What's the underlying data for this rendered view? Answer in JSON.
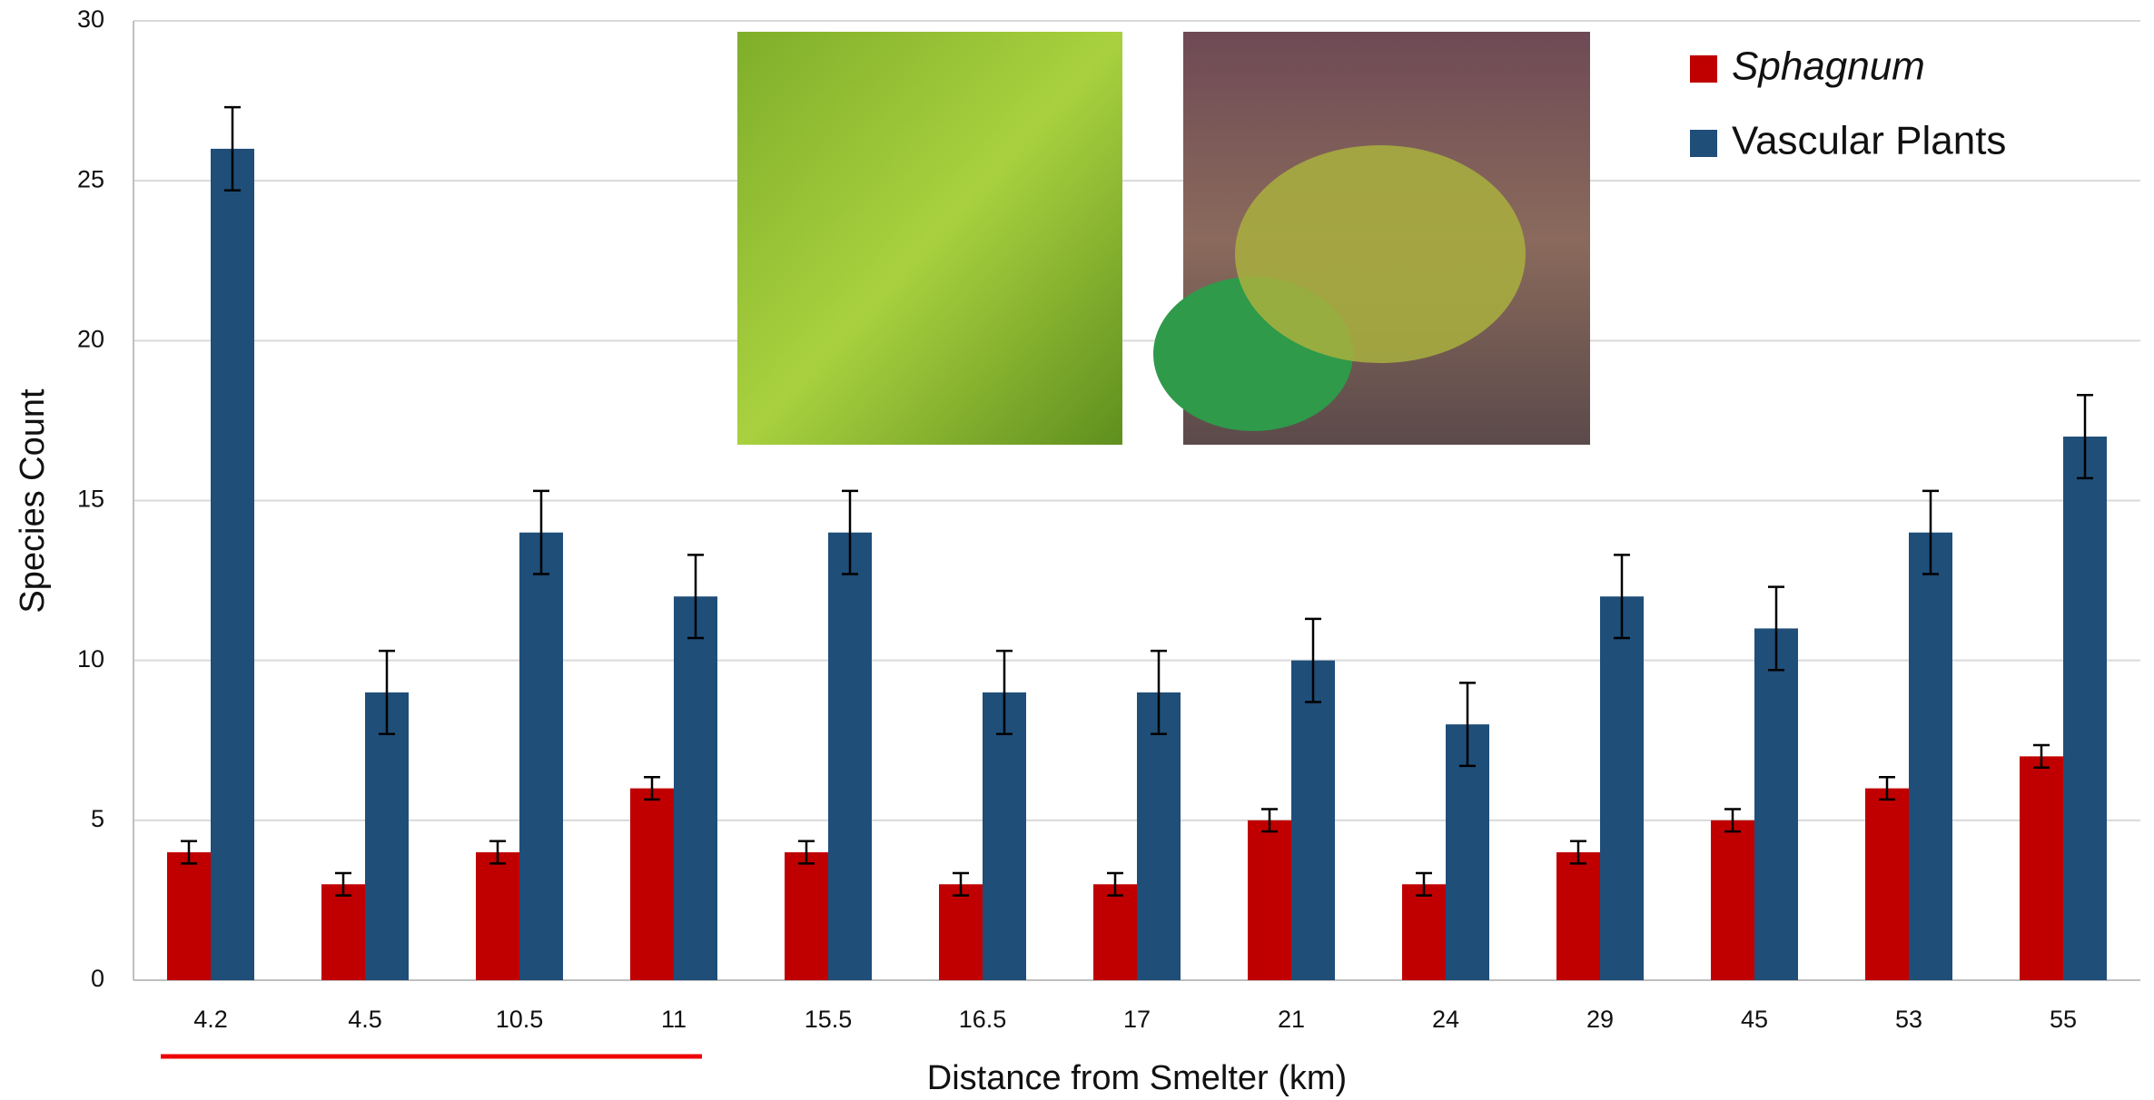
{
  "chart_data": {
    "type": "bar",
    "x_label": "Distance from Smelter (km)",
    "y_label": "Species Count",
    "categories": [
      "4.2",
      "4.5",
      "10.5",
      "11",
      "15.5",
      "16.5",
      "17",
      "21",
      "24",
      "29",
      "45",
      "53",
      "55"
    ],
    "series": [
      {
        "name": "Sphagnum",
        "color": "#c00000",
        "values": [
          4,
          3,
          4,
          6,
          4,
          3,
          3,
          5,
          3,
          4,
          5,
          6,
          7
        ],
        "errors": [
          0.35,
          0.35,
          0.35,
          0.35,
          0.35,
          0.35,
          0.35,
          0.35,
          0.35,
          0.35,
          0.35,
          0.35,
          0.35
        ]
      },
      {
        "name": "Vascular Plants",
        "color": "#1f4e79",
        "values": [
          26,
          9,
          14,
          12,
          14,
          9,
          9,
          10,
          8,
          12,
          11,
          14,
          17
        ],
        "errors": [
          1.3,
          1.3,
          1.3,
          1.3,
          1.3,
          1.3,
          1.3,
          1.3,
          1.3,
          1.3,
          1.3,
          1.3,
          1.3
        ]
      }
    ],
    "ylim": [
      0,
      30
    ],
    "yticks": [
      0,
      5,
      10,
      15,
      20,
      25,
      30
    ],
    "grid": true,
    "legend": "top-right"
  }
}
